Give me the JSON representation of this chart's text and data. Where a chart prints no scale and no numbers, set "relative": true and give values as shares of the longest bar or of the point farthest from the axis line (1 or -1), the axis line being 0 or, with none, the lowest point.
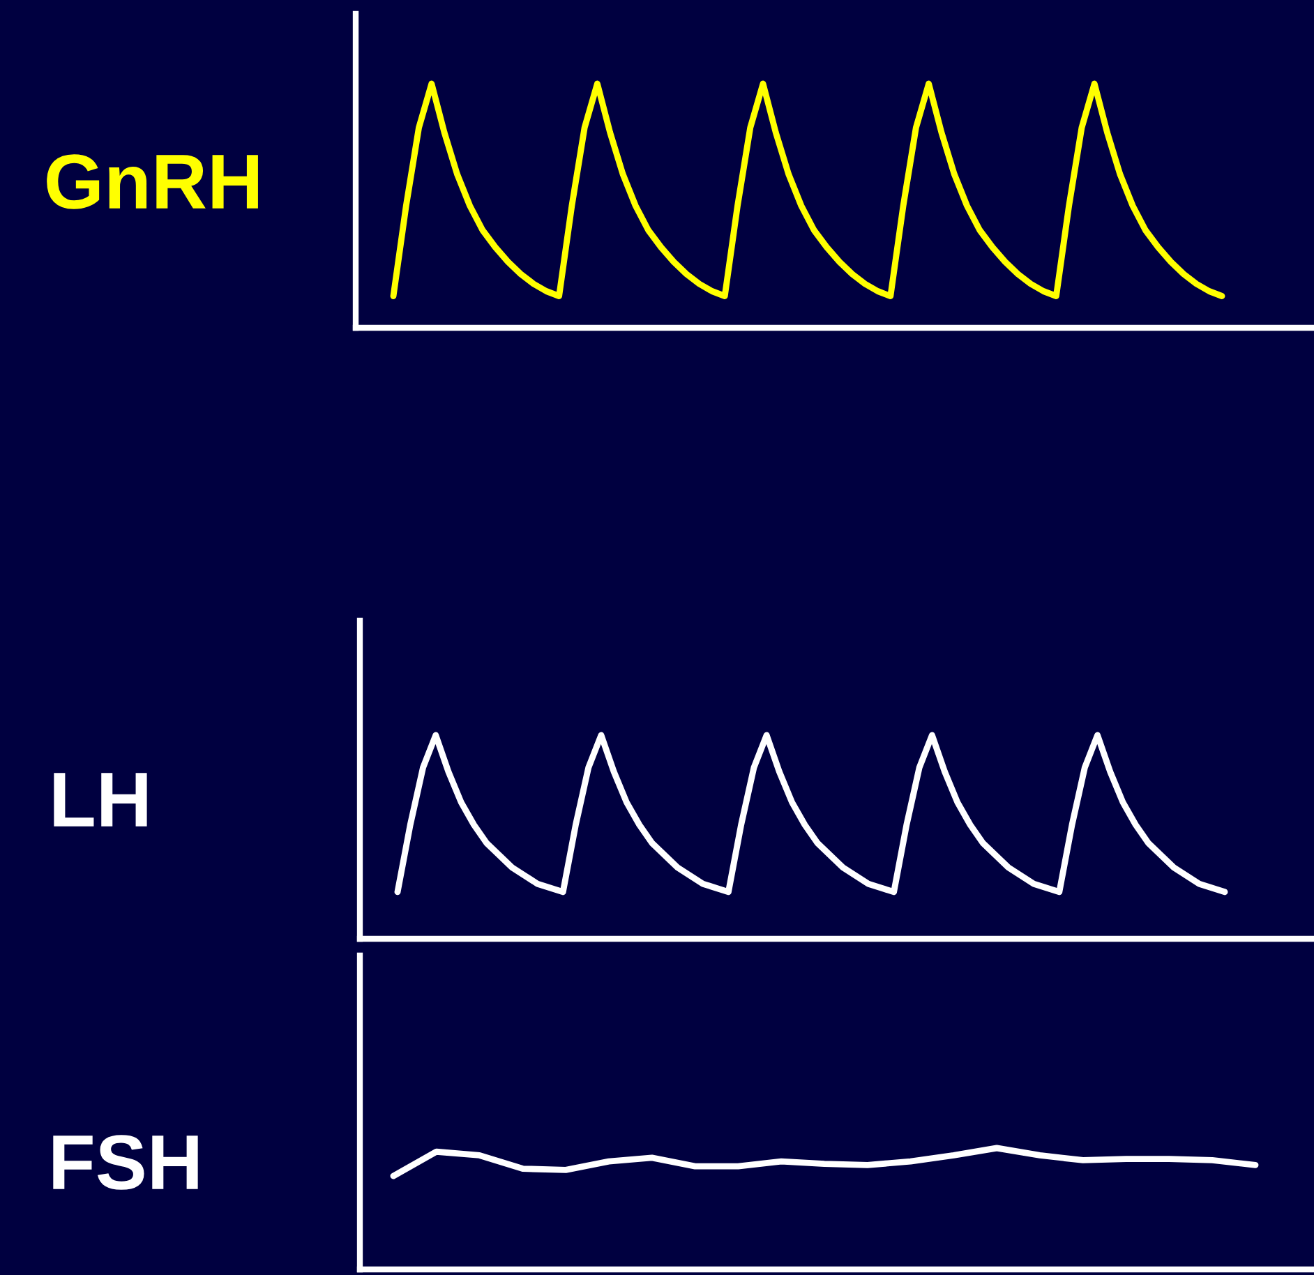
{
  "chart_data": [
    {
      "type": "line",
      "ylabel": "GnRH",
      "relative": true,
      "categories": [
        null,
        null,
        null,
        null,
        null,
        null,
        null,
        null,
        null,
        null,
        null,
        null,
        null,
        null,
        null,
        null,
        null,
        null,
        null,
        null,
        null,
        null,
        null,
        null,
        null,
        null,
        null,
        null,
        null,
        null,
        null,
        null,
        null,
        null,
        null,
        null,
        null,
        null,
        null,
        null,
        null,
        null,
        null,
        null,
        null,
        null,
        null,
        null,
        null,
        null,
        null,
        null,
        null,
        null,
        null,
        null,
        null,
        null,
        null,
        null,
        null,
        null,
        null,
        null,
        null,
        null
      ],
      "series": [
        {
          "color": "#ffff00",
          "values": [
            0.13,
            0.5,
            0.82,
            1.0,
            0.8,
            0.63,
            0.5,
            0.4,
            0.33,
            0.27,
            0.22,
            0.18,
            0.15,
            0.13,
            0.5,
            0.82,
            1.0,
            0.8,
            0.63,
            0.5,
            0.4,
            0.33,
            0.27,
            0.22,
            0.18,
            0.15,
            0.13,
            0.5,
            0.82,
            1.0,
            0.8,
            0.63,
            0.5,
            0.4,
            0.33,
            0.27,
            0.22,
            0.18,
            0.15,
            0.13,
            0.5,
            0.82,
            1.0,
            0.8,
            0.63,
            0.5,
            0.4,
            0.33,
            0.27,
            0.22,
            0.18,
            0.15,
            0.13,
            0.5,
            0.82,
            1.0,
            0.8,
            0.63,
            0.5,
            0.4,
            0.33,
            0.27,
            0.22,
            0.18,
            0.15,
            0.13
          ]
        }
      ]
    },
    {
      "type": "line",
      "ylabel": "LH",
      "relative": true,
      "categories": [
        null,
        null,
        null,
        null,
        null,
        null,
        null,
        null,
        null,
        null,
        null,
        null,
        null,
        null,
        null,
        null,
        null,
        null,
        null,
        null,
        null,
        null,
        null,
        null,
        null,
        null,
        null,
        null,
        null,
        null,
        null,
        null,
        null,
        null,
        null,
        null,
        null,
        null,
        null,
        null,
        null,
        null,
        null,
        null,
        null,
        null,
        null,
        null,
        null,
        null,
        null,
        null,
        null,
        null,
        null,
        null,
        null,
        null,
        null,
        null,
        null,
        null,
        null,
        null,
        null,
        null
      ],
      "series": [
        {
          "color": "#ffffff",
          "values": [
            0.23,
            0.56,
            0.84,
            1.0,
            0.82,
            0.67,
            0.56,
            0.47,
            0.41,
            0.35,
            0.31,
            0.27,
            0.25,
            0.23,
            0.56,
            0.84,
            1.0,
            0.82,
            0.67,
            0.56,
            0.47,
            0.41,
            0.35,
            0.31,
            0.27,
            0.25,
            0.23,
            0.56,
            0.84,
            1.0,
            0.82,
            0.67,
            0.56,
            0.47,
            0.41,
            0.35,
            0.31,
            0.27,
            0.25,
            0.23,
            0.56,
            0.84,
            1.0,
            0.82,
            0.67,
            0.56,
            0.47,
            0.41,
            0.35,
            0.31,
            0.27,
            0.25,
            0.23,
            0.56,
            0.84,
            1.0,
            0.82,
            0.67,
            0.56,
            0.47,
            0.41,
            0.35,
            0.31,
            0.27,
            0.25,
            0.23
          ]
        }
      ]
    },
    {
      "type": "line",
      "ylabel": "FSH",
      "relative": true,
      "categories": [
        null,
        null,
        null,
        null,
        null,
        null,
        null,
        null,
        null,
        null,
        null,
        null,
        null,
        null,
        null,
        null,
        null,
        null,
        null,
        null,
        null
      ],
      "series": [
        {
          "color": "#ffffff",
          "values": [
            0.77,
            0.97,
            0.94,
            0.83,
            0.82,
            0.89,
            0.92,
            0.85,
            0.85,
            0.89,
            0.87,
            0.86,
            0.89,
            0.94,
            1.0,
            0.94,
            0.9,
            0.91,
            0.91,
            0.9,
            0.86
          ]
        }
      ]
    }
  ]
}
